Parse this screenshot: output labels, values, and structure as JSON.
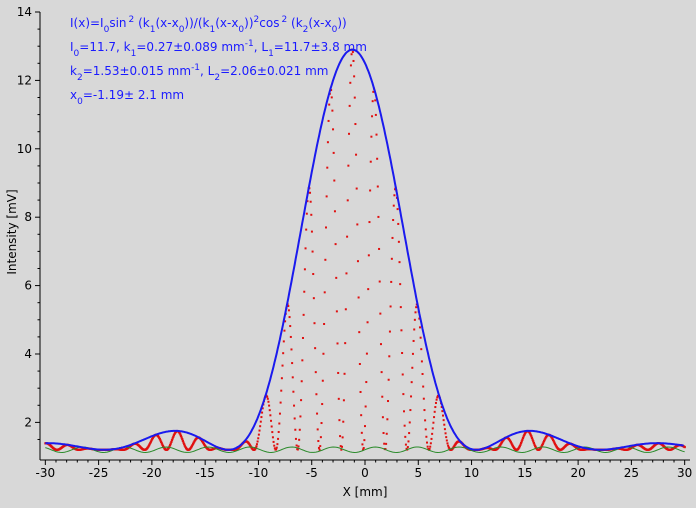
{
  "chart_data": {
    "type": "scatter",
    "xlabel": "X [mm]",
    "ylabel": "Intensity [mV]",
    "xlim": [
      -30.5,
      30.5
    ],
    "ylim": [
      0.9,
      14
    ],
    "x_ticks": [
      -30,
      -25,
      -20,
      -15,
      -10,
      -5,
      0,
      5,
      10,
      15,
      20,
      25,
      30
    ],
    "y_ticks": [
      2,
      4,
      6,
      8,
      10,
      12,
      14
    ],
    "grid": false,
    "annotation": {
      "formula": {
        "pre": "I(x)=I",
        "sub0": "0",
        "mid": "sin",
        "sup1": "2",
        "mid2": " (k",
        "sub1": "1",
        "tail": "(x-x",
        "sub2": "0",
        "tail2": "))/(k",
        "sub3": "1",
        "tail3": "(x-x",
        "sub4": "0",
        "tail4": "))",
        "sup2": "2",
        "tail5": "cos",
        "sup3": "2",
        "tail6": " (k",
        "sub5": "2",
        "tail7": "(x-x",
        "sub6": "0",
        "tail8": "))"
      },
      "line2": {
        "a": "I",
        "a_sub": "0",
        "b": "=11.7,  k",
        "b_sub": "1",
        "c": "=0.27±0.089 mm",
        "c_sup": "-1",
        "d": ",   L",
        "d_sub": "1",
        "e": "=11.7±3.8 mm"
      },
      "line3": {
        "a": "k",
        "a_sub": "2",
        "b": "=1.53±0.015 mm",
        "b_sup": "-1",
        "c": ",   L",
        "c_sub": "2",
        "d": "=2.06±0.021 mm"
      },
      "line4": {
        "a": "x",
        "a_sub": "0",
        "b": "=-1.19±  2.1 mm"
      }
    },
    "fit": {
      "name": "fit",
      "I0": 11.7,
      "k1": 0.27,
      "k2": 1.53,
      "x0": -1.19,
      "baseline": 1.2
    },
    "series": [
      {
        "model": "measured",
        "x_range": [
          -30,
          30
        ]
      },
      {
        "model": "fit",
        "x_range": [
          -30,
          30
        ]
      }
    ],
    "colors": {
      "background": "#d8d8d8",
      "fit": "#1a1aee",
      "data": "#e01010",
      "baseline": "#2a8a2a"
    }
  }
}
